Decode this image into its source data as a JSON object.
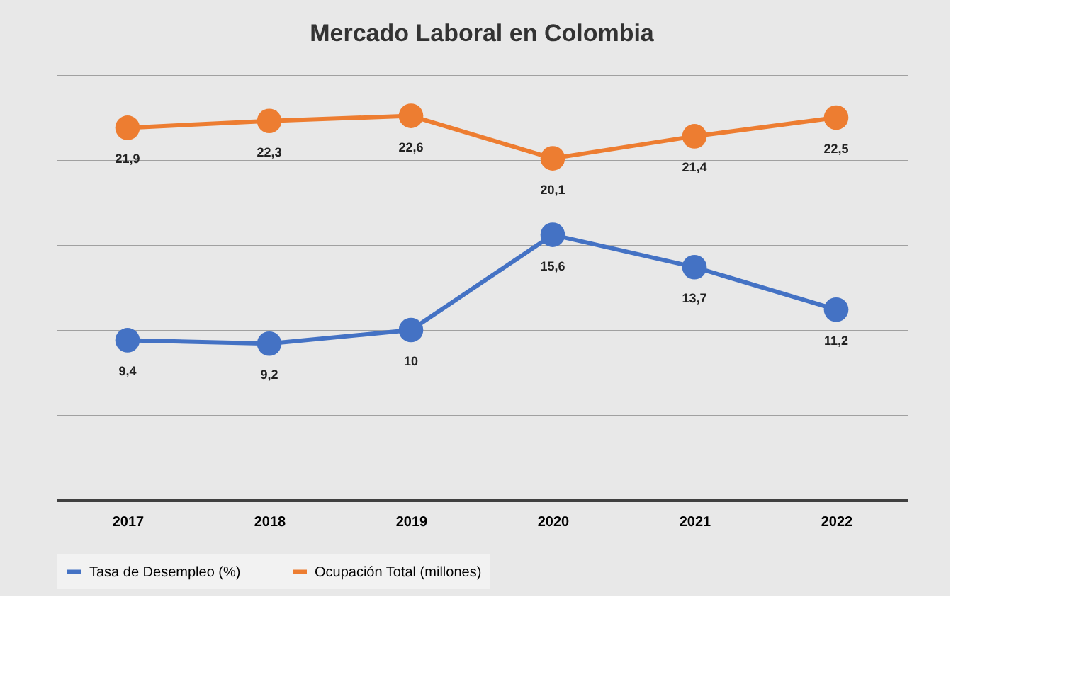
{
  "chart_data": {
    "type": "line",
    "title": "Mercado Laboral en Colombia",
    "categories": [
      "2017",
      "2018",
      "2019",
      "2020",
      "2021",
      "2022"
    ],
    "series": [
      {
        "name": "Tasa de Desempleo (%)",
        "color": "#4472c4",
        "values": [
          9.4,
          9.2,
          10,
          15.6,
          13.7,
          11.2
        ],
        "value_labels": [
          "9,4",
          "9,2",
          "10",
          "15,6",
          "13,7",
          "11,2"
        ]
      },
      {
        "name": "Ocupación Total (millones)",
        "color": "#ed7d31",
        "values": [
          21.9,
          22.3,
          22.6,
          20.1,
          21.4,
          22.5
        ],
        "value_labels": [
          "21,9",
          "22,3",
          "22,6",
          "20,1",
          "21,4",
          "22,5"
        ]
      }
    ],
    "ylim": [
      0,
      25
    ],
    "yticks": [
      {
        "value": 0,
        "label": null
      },
      {
        "value": 5,
        "label": null
      },
      {
        "value": 10,
        "label": null
      },
      {
        "value": 15,
        "label": null
      },
      {
        "value": 20,
        "label": null
      },
      {
        "value": 25,
        "label": null
      }
    ],
    "grid": "y",
    "legend": "bottom",
    "marker": "circle",
    "line_style": "solid",
    "tick_labels": "x"
  }
}
